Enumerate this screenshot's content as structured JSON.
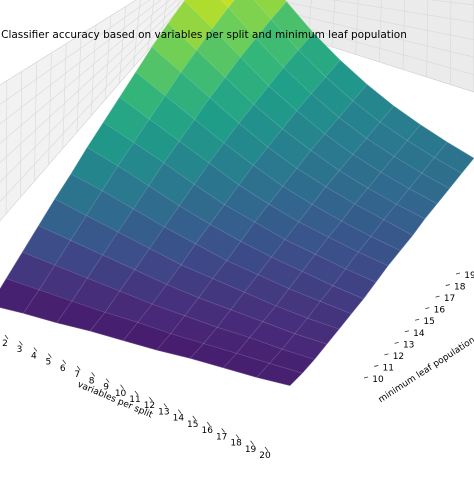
{
  "chart_data": {
    "type": "surface",
    "title": "Classifier accuracy based on variables per split and minimum leaf population",
    "xlabel": "variables per split",
    "ylabel": "minimum leaf population",
    "x_ticks": [
      2,
      3,
      4,
      5,
      6,
      7,
      8,
      9,
      10,
      11,
      12,
      13,
      14,
      15,
      16,
      17,
      18,
      19,
      20
    ],
    "y_ticks": [
      10,
      11,
      12,
      13,
      14,
      15,
      16,
      17,
      18,
      19
    ],
    "grid": true,
    "colormap": "viridis",
    "surface_rows": [
      [
        0.05,
        0.13,
        0.21,
        0.29,
        0.37,
        0.44,
        0.52,
        0.59,
        0.66,
        0.73,
        0.8,
        0.86,
        0.91,
        0.95,
        0.98,
        1.0
      ],
      [
        0.06,
        0.12,
        0.19,
        0.26,
        0.33,
        0.4,
        0.47,
        0.53,
        0.59,
        0.65,
        0.71,
        0.76,
        0.81,
        0.85,
        0.88,
        0.9
      ],
      [
        0.06,
        0.11,
        0.17,
        0.23,
        0.29,
        0.35,
        0.41,
        0.47,
        0.52,
        0.57,
        0.62,
        0.66,
        0.7,
        0.73,
        0.76,
        0.78
      ],
      [
        0.07,
        0.1,
        0.15,
        0.2,
        0.25,
        0.3,
        0.35,
        0.4,
        0.45,
        0.49,
        0.53,
        0.56,
        0.59,
        0.62,
        0.64,
        0.66
      ],
      [
        0.07,
        0.1,
        0.13,
        0.17,
        0.21,
        0.26,
        0.3,
        0.34,
        0.38,
        0.42,
        0.45,
        0.48,
        0.51,
        0.53,
        0.55,
        0.57
      ],
      [
        0.07,
        0.09,
        0.12,
        0.15,
        0.19,
        0.22,
        0.26,
        0.3,
        0.33,
        0.36,
        0.39,
        0.42,
        0.44,
        0.46,
        0.48,
        0.5
      ],
      [
        0.08,
        0.09,
        0.11,
        0.14,
        0.17,
        0.2,
        0.23,
        0.26,
        0.29,
        0.32,
        0.35,
        0.37,
        0.39,
        0.41,
        0.43,
        0.45
      ],
      [
        0.08,
        0.09,
        0.11,
        0.13,
        0.15,
        0.18,
        0.21,
        0.24,
        0.27,
        0.29,
        0.32,
        0.34,
        0.36,
        0.38,
        0.4,
        0.42
      ],
      [
        0.08,
        0.09,
        0.1,
        0.12,
        0.14,
        0.17,
        0.19,
        0.22,
        0.25,
        0.27,
        0.3,
        0.32,
        0.34,
        0.36,
        0.38,
        0.4
      ],
      [
        0.09,
        0.09,
        0.1,
        0.12,
        0.14,
        0.16,
        0.18,
        0.21,
        0.24,
        0.26,
        0.28,
        0.31,
        0.33,
        0.35,
        0.37,
        0.39
      ]
    ]
  }
}
